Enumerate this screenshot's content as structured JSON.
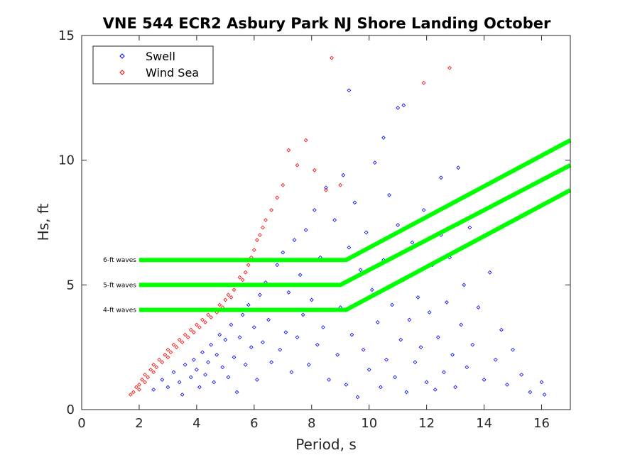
{
  "chart_data": {
    "type": "scatter",
    "title": "VNE 544 ECR2 Asbury Park NJ Shore Landing October",
    "xlabel": "Period, s",
    "ylabel": "Hs, ft",
    "xlim": [
      0,
      17
    ],
    "ylim": [
      0,
      15
    ],
    "xticks": [
      0,
      2,
      4,
      6,
      8,
      10,
      12,
      14,
      16
    ],
    "yticks": [
      0,
      5,
      10,
      15
    ],
    "grid": false,
    "legend_position": "top-left",
    "series": [
      {
        "name": "Swell",
        "color": "#0000ff",
        "marker": "diamond",
        "points": [
          [
            2.5,
            0.8
          ],
          [
            2.8,
            1.2
          ],
          [
            3.0,
            0.9
          ],
          [
            3.2,
            1.5
          ],
          [
            3.4,
            1.1
          ],
          [
            3.5,
            0.6
          ],
          [
            3.6,
            1.8
          ],
          [
            3.8,
            1.3
          ],
          [
            3.9,
            2.0
          ],
          [
            4.0,
            1.6
          ],
          [
            4.1,
            0.9
          ],
          [
            4.2,
            2.3
          ],
          [
            4.3,
            1.4
          ],
          [
            4.4,
            1.9
          ],
          [
            4.5,
            2.6
          ],
          [
            4.6,
            1.1
          ],
          [
            4.7,
            2.2
          ],
          [
            4.8,
            3.0
          ],
          [
            4.9,
            1.7
          ],
          [
            5.0,
            2.8
          ],
          [
            5.1,
            1.3
          ],
          [
            5.2,
            3.4
          ],
          [
            5.3,
            2.1
          ],
          [
            5.4,
            0.7
          ],
          [
            5.5,
            2.9
          ],
          [
            5.6,
            3.8
          ],
          [
            5.7,
            1.8
          ],
          [
            5.8,
            4.2
          ],
          [
            5.9,
            2.5
          ],
          [
            6.0,
            3.3
          ],
          [
            6.1,
            1.2
          ],
          [
            6.2,
            4.6
          ],
          [
            6.3,
            2.7
          ],
          [
            6.4,
            5.1
          ],
          [
            6.5,
            3.6
          ],
          [
            6.6,
            1.9
          ],
          [
            6.7,
            4.0
          ],
          [
            6.8,
            5.8
          ],
          [
            6.9,
            2.4
          ],
          [
            7.0,
            6.3
          ],
          [
            7.1,
            3.1
          ],
          [
            7.2,
            4.7
          ],
          [
            7.3,
            1.5
          ],
          [
            7.4,
            6.8
          ],
          [
            7.5,
            2.9
          ],
          [
            7.6,
            5.4
          ],
          [
            7.7,
            3.8
          ],
          [
            7.8,
            7.2
          ],
          [
            7.9,
            1.8
          ],
          [
            8.0,
            4.4
          ],
          [
            8.1,
            8.0
          ],
          [
            8.2,
            2.6
          ],
          [
            8.3,
            6.1
          ],
          [
            8.4,
            3.3
          ],
          [
            8.5,
            8.9
          ],
          [
            8.6,
            1.2
          ],
          [
            8.7,
            5.0
          ],
          [
            8.8,
            7.6
          ],
          [
            8.9,
            2.2
          ],
          [
            9.0,
            4.1
          ],
          [
            9.1,
            9.4
          ],
          [
            9.2,
            1.0
          ],
          [
            9.3,
            6.5
          ],
          [
            9.4,
            3.0
          ],
          [
            9.5,
            8.3
          ],
          [
            9.6,
            0.5
          ],
          [
            9.7,
            5.6
          ],
          [
            9.8,
            2.4
          ],
          [
            9.9,
            7.1
          ],
          [
            10.0,
            1.6
          ],
          [
            10.1,
            4.8
          ],
          [
            10.2,
            9.9
          ],
          [
            10.3,
            3.5
          ],
          [
            10.4,
            0.9
          ],
          [
            10.5,
            6.0
          ],
          [
            10.6,
            2.0
          ],
          [
            10.7,
            8.6
          ],
          [
            10.8,
            4.2
          ],
          [
            10.9,
            1.3
          ],
          [
            11.0,
            7.4
          ],
          [
            11.1,
            2.8
          ],
          [
            11.2,
            5.2
          ],
          [
            11.3,
            0.7
          ],
          [
            11.4,
            3.6
          ],
          [
            11.5,
            6.7
          ],
          [
            11.6,
            1.9
          ],
          [
            11.7,
            4.5
          ],
          [
            11.8,
            2.5
          ],
          [
            11.9,
            8.0
          ],
          [
            12.0,
            1.1
          ],
          [
            12.1,
            3.9
          ],
          [
            12.2,
            5.8
          ],
          [
            12.3,
            0.8
          ],
          [
            12.4,
            2.9
          ],
          [
            12.5,
            7.0
          ],
          [
            12.6,
            1.5
          ],
          [
            12.7,
            4.3
          ],
          [
            12.8,
            6.1
          ],
          [
            12.9,
            2.2
          ],
          [
            13.0,
            0.9
          ],
          [
            13.1,
            9.7
          ],
          [
            13.2,
            3.4
          ],
          [
            13.3,
            5.0
          ],
          [
            13.4,
            1.7
          ],
          [
            13.5,
            7.3
          ],
          [
            13.6,
            2.6
          ],
          [
            13.8,
            4.1
          ],
          [
            14.0,
            1.2
          ],
          [
            14.2,
            5.5
          ],
          [
            14.4,
            2.0
          ],
          [
            14.6,
            3.2
          ],
          [
            14.8,
            1.0
          ],
          [
            15.0,
            2.4
          ],
          [
            15.3,
            1.4
          ],
          [
            15.6,
            0.7
          ],
          [
            16.0,
            1.1
          ],
          [
            16.1,
            0.6
          ],
          [
            9.3,
            12.8
          ],
          [
            11.0,
            12.1
          ],
          [
            11.2,
            12.2
          ],
          [
            10.5,
            10.9
          ],
          [
            12.5,
            9.3
          ]
        ]
      },
      {
        "name": "Wind Sea",
        "color": "#ff0000",
        "marker": "diamond",
        "points": [
          [
            1.7,
            0.6
          ],
          [
            1.8,
            0.7
          ],
          [
            1.9,
            0.9
          ],
          [
            2.0,
            1.0
          ],
          [
            2.0,
            0.8
          ],
          [
            2.1,
            1.2
          ],
          [
            2.2,
            1.1
          ],
          [
            2.2,
            1.4
          ],
          [
            2.3,
            1.3
          ],
          [
            2.4,
            1.6
          ],
          [
            2.5,
            1.5
          ],
          [
            2.5,
            1.8
          ],
          [
            2.6,
            1.7
          ],
          [
            2.7,
            2.0
          ],
          [
            2.8,
            1.9
          ],
          [
            2.9,
            2.2
          ],
          [
            3.0,
            2.1
          ],
          [
            3.0,
            2.4
          ],
          [
            3.1,
            2.3
          ],
          [
            3.2,
            2.6
          ],
          [
            3.3,
            2.5
          ],
          [
            3.4,
            2.8
          ],
          [
            3.5,
            2.7
          ],
          [
            3.6,
            3.0
          ],
          [
            3.7,
            2.9
          ],
          [
            3.8,
            3.2
          ],
          [
            3.9,
            3.1
          ],
          [
            4.0,
            3.4
          ],
          [
            4.1,
            3.3
          ],
          [
            4.2,
            3.6
          ],
          [
            4.3,
            3.5
          ],
          [
            4.4,
            3.8
          ],
          [
            4.5,
            3.7
          ],
          [
            4.6,
            4.0
          ],
          [
            4.7,
            3.9
          ],
          [
            4.8,
            4.2
          ],
          [
            4.9,
            4.1
          ],
          [
            5.0,
            4.4
          ],
          [
            5.1,
            4.6
          ],
          [
            5.2,
            4.5
          ],
          [
            5.3,
            4.8
          ],
          [
            5.4,
            5.0
          ],
          [
            5.5,
            5.3
          ],
          [
            5.6,
            5.2
          ],
          [
            5.7,
            5.5
          ],
          [
            5.8,
            5.8
          ],
          [
            5.9,
            6.1
          ],
          [
            6.0,
            6.4
          ],
          [
            6.1,
            6.8
          ],
          [
            6.2,
            7.0
          ],
          [
            6.3,
            7.3
          ],
          [
            6.4,
            7.6
          ],
          [
            6.6,
            8.0
          ],
          [
            6.8,
            8.5
          ],
          [
            7.0,
            9.0
          ],
          [
            7.2,
            10.4
          ],
          [
            7.5,
            9.8
          ],
          [
            7.8,
            10.8
          ],
          [
            8.1,
            9.6
          ],
          [
            8.5,
            8.8
          ],
          [
            8.7,
            14.1
          ],
          [
            9.0,
            9.0
          ],
          [
            11.9,
            13.1
          ],
          [
            12.8,
            13.7
          ]
        ]
      }
    ],
    "threshold_lines": [
      {
        "label": "4-ft waves",
        "color": "#00ff00",
        "points": [
          [
            2,
            4
          ],
          [
            9.2,
            4
          ],
          [
            17,
            8.8
          ]
        ]
      },
      {
        "label": "5-ft waves",
        "color": "#00ff00",
        "points": [
          [
            2,
            5
          ],
          [
            9.0,
            5
          ],
          [
            17,
            9.8
          ]
        ]
      },
      {
        "label": "6-ft waves",
        "color": "#00ff00",
        "points": [
          [
            2,
            6
          ],
          [
            9.2,
            6
          ],
          [
            17,
            10.8
          ]
        ]
      }
    ]
  }
}
